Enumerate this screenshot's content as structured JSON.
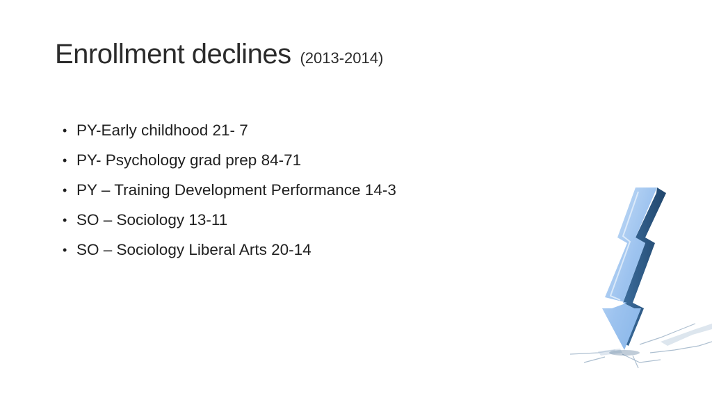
{
  "slide": {
    "title": "Enrollment declines",
    "title_years": "(2013-2014)",
    "bullets": [
      "PY-Early childhood 21- 7",
      "PY- Psychology grad prep 84-71",
      "PY – Training Development Performance 14-3",
      "SO – Sociology 13-11",
      "SO – Sociology Liberal Arts 20-14"
    ],
    "bullet_glyph": "•",
    "graphic": {
      "icon": "declining-arrow-crack-icon",
      "colors": {
        "arrow_face": "#9dc3ef",
        "arrow_side": "#2f5d8a",
        "arrow_light": "#cfe3f8",
        "crack": "#9fb4c8"
      }
    }
  }
}
